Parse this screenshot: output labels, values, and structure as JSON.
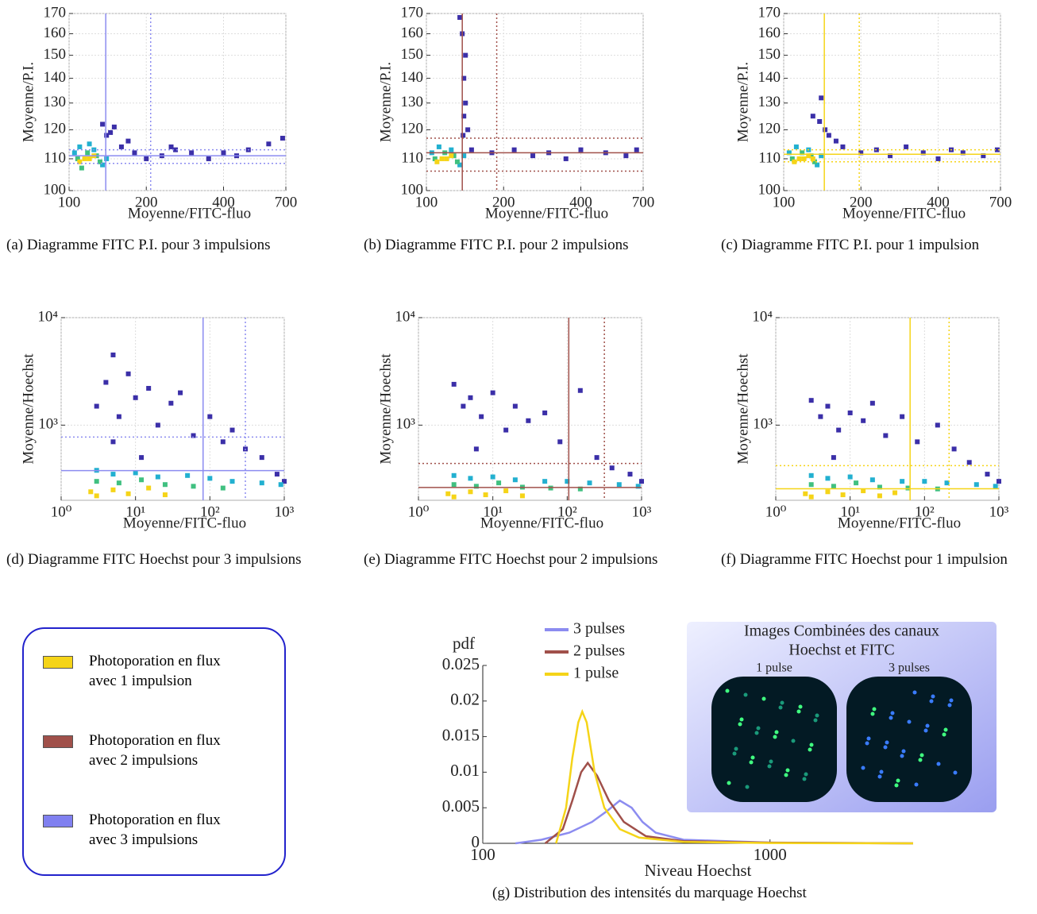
{
  "chart_data": [
    {
      "type": "scatter",
      "caption": "(a) Diagramme FITC P.I. pour 3 impulsions",
      "xlabel": "Moyenne/FITC-fluo",
      "ylabel": "Moyenne/P.I.",
      "xlog": true,
      "ylog": true,
      "xlim": [
        100,
        700
      ],
      "ylim": [
        100,
        170
      ],
      "xticks": [
        100,
        200,
        400,
        700
      ],
      "yticks": [
        100,
        110,
        120,
        130,
        140,
        150,
        160,
        170
      ],
      "grid": true,
      "line_color": "#8c8cf0",
      "vlines": [
        {
          "value": 139,
          "style": "solid"
        },
        {
          "value": 208,
          "style": "dotted"
        }
      ],
      "hlines": [
        {
          "value": 111,
          "style": "solid"
        },
        {
          "value": 108.5,
          "style": "dotted"
        },
        {
          "value": 113,
          "style": "dotted"
        }
      ],
      "point_groups": [
        {
          "color": "#3b2fa8",
          "x": [
            140,
            150,
            160,
            180,
            200,
            230,
            260,
            300,
            350,
            400,
            450,
            500,
            600,
            680,
            135,
            145,
            170,
            250
          ],
          "y": [
            118,
            121,
            114,
            112,
            110,
            111,
            113,
            112,
            110,
            112,
            111,
            113,
            115,
            117,
            122,
            119,
            116,
            114
          ]
        },
        {
          "color": "#22b0d0",
          "x": [
            105,
            110,
            125,
            135,
            140,
            120
          ],
          "y": [
            112,
            114,
            113,
            108,
            110,
            115
          ]
        },
        {
          "color": "#40c080",
          "x": [
            108,
            118,
            128,
            132,
            112
          ],
          "y": [
            110,
            112,
            111,
            109,
            107
          ]
        },
        {
          "color": "#f5d418",
          "x": [
            110,
            115,
            120,
            125
          ],
          "y": [
            109,
            110,
            110,
            111
          ]
        }
      ]
    },
    {
      "type": "scatter",
      "caption": "(b) Diagramme FITC P.I. pour 2 impulsions",
      "xlabel": "Moyenne/FITC-fluo",
      "ylabel": "Moyenne/P.I.",
      "xlog": true,
      "ylog": true,
      "xlim": [
        100,
        700
      ],
      "ylim": [
        100,
        170
      ],
      "xticks": [
        100,
        200,
        400,
        700
      ],
      "yticks": [
        100,
        110,
        120,
        130,
        140,
        150,
        160,
        170
      ],
      "grid": true,
      "line_color": "#a0504a",
      "vlines": [
        {
          "value": 138,
          "style": "solid"
        },
        {
          "value": 188,
          "style": "dotted"
        }
      ],
      "hlines": [
        {
          "value": 112,
          "style": "solid"
        },
        {
          "value": 106,
          "style": "dotted"
        },
        {
          "value": 117,
          "style": "dotted"
        }
      ],
      "point_groups": [
        {
          "color": "#3b2fa8",
          "x": [
            135,
            138,
            140,
            142,
            140,
            145,
            150,
            180,
            220,
            260,
            300,
            350,
            400,
            500,
            600,
            660,
            142,
            139
          ],
          "y": [
            168,
            160,
            140,
            130,
            125,
            120,
            113,
            112,
            113,
            111,
            112,
            110,
            113,
            112,
            111,
            113,
            150,
            118
          ]
        },
        {
          "color": "#22b0d0",
          "x": [
            105,
            112,
            125,
            135,
            140
          ],
          "y": [
            112,
            114,
            113,
            108,
            111
          ]
        },
        {
          "color": "#40c080",
          "x": [
            108,
            118,
            128,
            132
          ],
          "y": [
            110,
            112,
            111,
            109
          ]
        },
        {
          "color": "#f5d418",
          "x": [
            110,
            115,
            120,
            125
          ],
          "y": [
            109,
            110,
            110,
            111
          ]
        }
      ]
    },
    {
      "type": "scatter",
      "caption": "(c) Diagramme FITC P.I. pour 1 impulsion",
      "xlabel": "Moyenne/FITC-fluo",
      "ylabel": "Moyenne/P.I.",
      "xlog": true,
      "ylog": true,
      "xlim": [
        100,
        700
      ],
      "ylim": [
        100,
        170
      ],
      "xticks": [
        100,
        200,
        400,
        700
      ],
      "yticks": [
        100,
        110,
        120,
        130,
        140,
        150,
        160,
        170
      ],
      "grid": true,
      "line_color": "#f5d418",
      "vlines": [
        {
          "value": 144,
          "style": "solid"
        },
        {
          "value": 197,
          "style": "dotted"
        }
      ],
      "hlines": [
        {
          "value": 111.5,
          "style": "solid"
        },
        {
          "value": 109,
          "style": "dotted"
        },
        {
          "value": 113,
          "style": "dotted"
        }
      ],
      "point_groups": [
        {
          "color": "#3b2fa8",
          "x": [
            130,
            140,
            145,
            150,
            170,
            200,
            230,
            260,
            300,
            350,
            400,
            450,
            500,
            600,
            680,
            138,
            160
          ],
          "y": [
            125,
            132,
            120,
            118,
            114,
            112,
            113,
            111,
            114,
            112,
            110,
            113,
            112,
            111,
            113,
            123,
            116
          ]
        },
        {
          "color": "#22b0d0",
          "x": [
            105,
            112,
            125,
            135,
            140
          ],
          "y": [
            112,
            114,
            113,
            108,
            111
          ]
        },
        {
          "color": "#40c080",
          "x": [
            108,
            118,
            128,
            132
          ],
          "y": [
            110,
            112,
            111,
            109
          ]
        },
        {
          "color": "#f5d418",
          "x": [
            110,
            115,
            120,
            125,
            130
          ],
          "y": [
            109,
            110,
            110,
            111,
            110
          ]
        }
      ]
    },
    {
      "type": "scatter",
      "caption": "(d) Diagramme FITC Hoechst pour 3 impulsions",
      "xlabel": "Moyenne/FITC-fluo",
      "ylabel": "Moyenne/Hoechst",
      "xlog": true,
      "ylog": true,
      "xlim": [
        1,
        1000
      ],
      "ylim": [
        200,
        10000
      ],
      "xticks": [
        {
          "value": 1,
          "label": "10⁰"
        },
        {
          "value": 10,
          "label": "10¹"
        },
        {
          "value": 100,
          "label": "10²"
        },
        {
          "value": 1000,
          "label": "10³"
        }
      ],
      "yticks": [
        {
          "value": 1000,
          "label": "10³"
        },
        {
          "value": 10000,
          "label": "10⁴"
        }
      ],
      "grid": true,
      "line_color": "#8c8cf0",
      "vlines": [
        {
          "value": 81,
          "style": "solid"
        },
        {
          "value": 300,
          "style": "dotted"
        }
      ],
      "hlines": [
        {
          "value": 378,
          "style": "solid"
        },
        {
          "value": 775,
          "style": "dotted"
        }
      ],
      "point_groups": [
        {
          "color": "#3b2fa8",
          "x": [
            3,
            4,
            5,
            6,
            8,
            10,
            15,
            20,
            30,
            40,
            60,
            100,
            150,
            200,
            300,
            500,
            800,
            1000,
            5,
            12
          ],
          "y": [
            1500,
            2500,
            4500,
            1200,
            3000,
            1800,
            2200,
            1000,
            1600,
            2000,
            800,
            1200,
            700,
            900,
            600,
            500,
            350,
            300,
            700,
            500
          ]
        },
        {
          "color": "#22b0d0",
          "x": [
            3,
            5,
            10,
            20,
            50,
            100,
            200,
            500,
            900
          ],
          "y": [
            380,
            350,
            360,
            330,
            340,
            320,
            300,
            290,
            280
          ]
        },
        {
          "color": "#40c080",
          "x": [
            3,
            6,
            12,
            25,
            60,
            150
          ],
          "y": [
            300,
            290,
            310,
            280,
            270,
            260
          ]
        },
        {
          "color": "#f5d418",
          "x": [
            2.5,
            3,
            5,
            8,
            15,
            25
          ],
          "y": [
            240,
            220,
            250,
            230,
            260,
            225
          ]
        }
      ]
    },
    {
      "type": "scatter",
      "caption": "(e) Diagramme FITC Hoechst pour 2 impulsions",
      "xlabel": "Moyenne/FITC-fluo",
      "ylabel": "Moyenne/Hoechst",
      "xlog": true,
      "ylog": true,
      "xlim": [
        1,
        1000
      ],
      "ylim": [
        200,
        10000
      ],
      "xticks": [
        {
          "value": 1,
          "label": "10⁰"
        },
        {
          "value": 10,
          "label": "10¹"
        },
        {
          "value": 100,
          "label": "10²"
        },
        {
          "value": 1000,
          "label": "10³"
        }
      ],
      "yticks": [
        {
          "value": 1000,
          "label": "10³"
        },
        {
          "value": 10000,
          "label": "10⁴"
        }
      ],
      "grid": true,
      "line_color": "#a0504a",
      "vlines": [
        {
          "value": 105,
          "style": "solid"
        },
        {
          "value": 316,
          "style": "dotted"
        }
      ],
      "hlines": [
        {
          "value": 263,
          "style": "solid"
        },
        {
          "value": 440,
          "style": "dotted"
        }
      ],
      "point_groups": [
        {
          "color": "#3b2fa8",
          "x": [
            3,
            4,
            5,
            7,
            10,
            15,
            20,
            30,
            50,
            80,
            150,
            250,
            400,
            700,
            1000,
            6
          ],
          "y": [
            2400,
            1500,
            1800,
            1200,
            2000,
            900,
            1500,
            1100,
            1300,
            700,
            2100,
            500,
            400,
            350,
            300,
            600
          ]
        },
        {
          "color": "#22b0d0",
          "x": [
            3,
            5,
            10,
            20,
            50,
            100,
            200,
            500,
            900
          ],
          "y": [
            340,
            320,
            330,
            310,
            300,
            300,
            290,
            280,
            270
          ]
        },
        {
          "color": "#40c080",
          "x": [
            3,
            6,
            12,
            25,
            60,
            150
          ],
          "y": [
            280,
            270,
            290,
            265,
            260,
            255
          ]
        },
        {
          "color": "#f5d418",
          "x": [
            2.5,
            3,
            5,
            8,
            15,
            25
          ],
          "y": [
            230,
            215,
            240,
            225,
            245,
            220
          ]
        }
      ]
    },
    {
      "type": "scatter",
      "caption": "(f) Diagramme FITC Hoechst pour 1 impulsion",
      "xlabel": "Moyenne/FITC-fluo",
      "ylabel": "Moyenne/Hoechst",
      "xlog": true,
      "ylog": true,
      "xlim": [
        1,
        1000
      ],
      "ylim": [
        200,
        10000
      ],
      "xticks": [
        {
          "value": 1,
          "label": "10⁰"
        },
        {
          "value": 10,
          "label": "10¹"
        },
        {
          "value": 100,
          "label": "10²"
        },
        {
          "value": 1000,
          "label": "10³"
        }
      ],
      "yticks": [
        {
          "value": 1000,
          "label": "10³"
        },
        {
          "value": 10000,
          "label": "10⁴"
        }
      ],
      "grid": true,
      "line_color": "#f5d418",
      "vlines": [
        {
          "value": 64,
          "style": "solid"
        },
        {
          "value": 214,
          "style": "dotted"
        }
      ],
      "hlines": [
        {
          "value": 256,
          "style": "solid"
        },
        {
          "value": 420,
          "style": "dotted"
        }
      ],
      "point_groups": [
        {
          "color": "#3b2fa8",
          "x": [
            3,
            4,
            5,
            7,
            10,
            15,
            20,
            30,
            50,
            80,
            150,
            250,
            400,
            700,
            1000,
            6
          ],
          "y": [
            1700,
            1200,
            1500,
            900,
            1300,
            1100,
            1600,
            800,
            1200,
            700,
            1000,
            600,
            450,
            350,
            300,
            500
          ]
        },
        {
          "color": "#22b0d0",
          "x": [
            3,
            5,
            10,
            20,
            50,
            100,
            200,
            500,
            900
          ],
          "y": [
            340,
            320,
            330,
            310,
            300,
            300,
            290,
            280,
            270
          ]
        },
        {
          "color": "#40c080",
          "x": [
            3,
            6,
            12,
            25,
            60,
            150
          ],
          "y": [
            280,
            270,
            290,
            265,
            260,
            255
          ]
        },
        {
          "color": "#f5d418",
          "x": [
            2.5,
            3,
            5,
            8,
            15,
            25,
            40
          ],
          "y": [
            230,
            215,
            240,
            225,
            245,
            220,
            235
          ]
        }
      ]
    },
    {
      "type": "line",
      "caption": "(g) Distribution des intensités du marquage Hoechst",
      "xlabel": "Niveau Hoechst",
      "ylabel": "pdf",
      "xlog": true,
      "ylog": false,
      "xlim": [
        100,
        3150
      ],
      "ylim": [
        0,
        0.025
      ],
      "xticks": [
        100,
        1000
      ],
      "yticks": [
        0,
        0.005,
        0.01,
        0.015,
        0.02,
        0.025
      ],
      "grid": false,
      "series": [
        {
          "name": "3 pulses",
          "color": "#8c8cf0",
          "x": [
            130,
            160,
            200,
            240,
            270,
            300,
            330,
            360,
            400,
            500,
            1000,
            3150
          ],
          "values": [
            0,
            0.0005,
            0.0015,
            0.003,
            0.0045,
            0.006,
            0.005,
            0.003,
            0.0015,
            0.0005,
            0.0001,
            0
          ]
        },
        {
          "name": "2 pulses",
          "color": "#a0504a",
          "x": [
            165,
            190,
            205,
            220,
            232,
            250,
            275,
            310,
            370,
            500,
            1000,
            3150
          ],
          "values": [
            0,
            0.002,
            0.006,
            0.01,
            0.0113,
            0.0095,
            0.006,
            0.003,
            0.001,
            0.0003,
            0.0001,
            0
          ]
        },
        {
          "name": "1 pulse",
          "color": "#f5d418",
          "x": [
            180,
            195,
            205,
            215,
            222,
            230,
            245,
            265,
            300,
            350,
            500,
            1000,
            3150
          ],
          "values": [
            0,
            0.005,
            0.012,
            0.017,
            0.0185,
            0.017,
            0.01,
            0.005,
            0.002,
            0.0008,
            0.0002,
            5e-05,
            0
          ]
        }
      ],
      "inset_title": [
        "Images Combinées des canaux",
        "Hoechst et FITC"
      ],
      "inset_labels": [
        "1 pulse",
        "3 pulses"
      ]
    }
  ],
  "legend_box": {
    "entries": [
      {
        "color": "#f5d418",
        "label": [
          "Photoporation en flux",
          "avec 1 impulsion"
        ]
      },
      {
        "color": "#a0504a",
        "label": [
          "Photoporation en flux",
          "avec 2 impulsions"
        ]
      },
      {
        "color": "#8080f0",
        "label": [
          "Photoporation en flux",
          "avec 3 impulsions"
        ]
      }
    ]
  }
}
